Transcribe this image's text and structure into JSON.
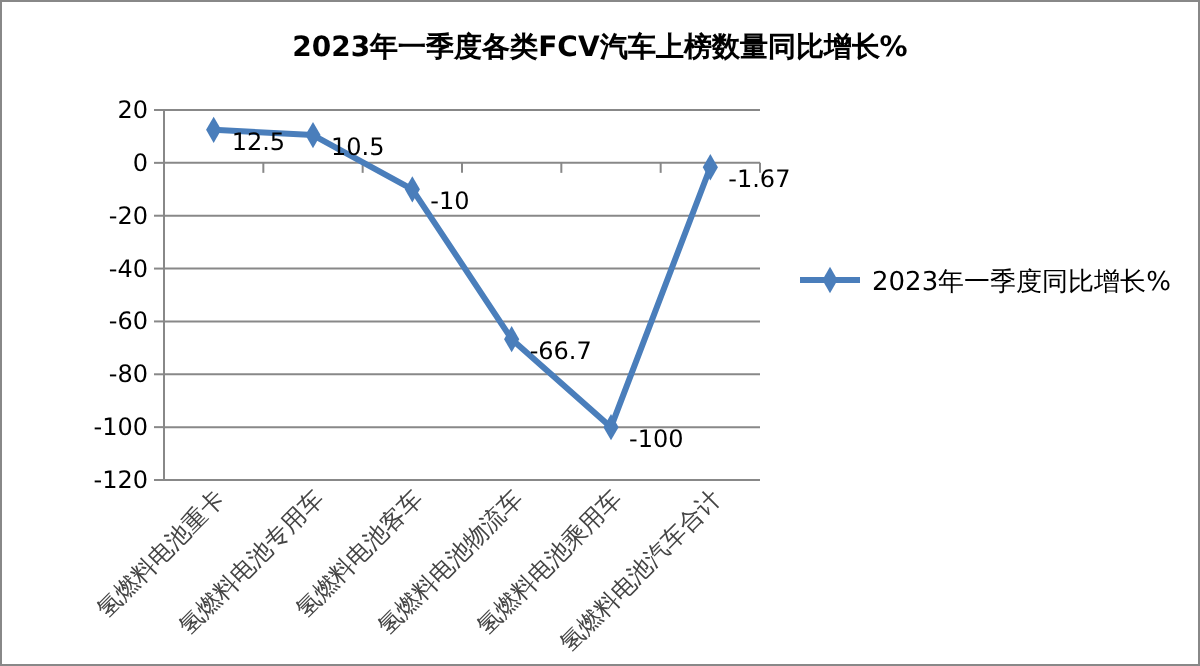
{
  "chart_data": {
    "type": "line",
    "title": "2023年一季度各类FCV汽车上榜数量同比增长%",
    "categories": [
      "氢燃料电池重卡",
      "氢燃料电池专用车",
      "氢燃料电池客车",
      "氢燃料电池物流车",
      "氢燃料电池乘用车",
      "氢燃料电池汽车合计"
    ],
    "series": [
      {
        "name": "2023年一季度同比增长%",
        "color": "#4a7ebb",
        "values": [
          12.5,
          10.5,
          -10,
          -66.7,
          -100,
          -1.67
        ]
      }
    ],
    "ylim": [
      -120,
      20
    ],
    "yticks": [
      -120,
      -100,
      -80,
      -60,
      -40,
      -20,
      0,
      20
    ],
    "grid": "y",
    "legend": "right",
    "marker": "diamond",
    "line_style": "solid",
    "data_labels": true
  }
}
